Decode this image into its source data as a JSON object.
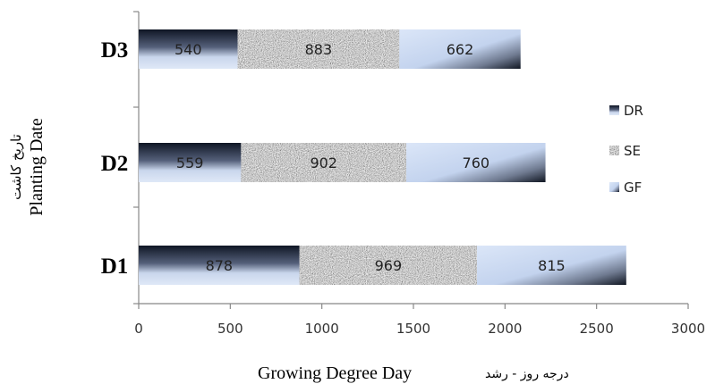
{
  "chart_data": {
    "type": "bar",
    "orientation": "horizontal",
    "stacked": true,
    "categories": [
      "D3",
      "D2",
      "D1"
    ],
    "series": [
      {
        "name": "DR",
        "values": [
          540,
          559,
          878
        ]
      },
      {
        "name": "SE",
        "values": [
          883,
          902,
          969
        ]
      },
      {
        "name": "GF",
        "values": [
          662,
          760,
          815
        ]
      }
    ],
    "data_labels": [
      [
        "540",
        "559",
        "878"
      ],
      [
        "883",
        "902",
        "969"
      ],
      [
        "662",
        "760",
        "815"
      ]
    ],
    "xlim": [
      0,
      3000
    ],
    "x_ticks": [
      "0",
      "500",
      "1000",
      "1500",
      "2000",
      "2500",
      "3000"
    ],
    "xlabel": "Growing Degree Day",
    "xlabel_fa": "درجه روز - رشد",
    "ylabel": "Planting Date",
    "ylabel_fa": "تاریخ کاشت",
    "legend_position": "right",
    "grid": false,
    "colors": {
      "DR": "#1a2233",
      "SE": "#8c8c8c",
      "GF": "#c8d7ef"
    }
  }
}
